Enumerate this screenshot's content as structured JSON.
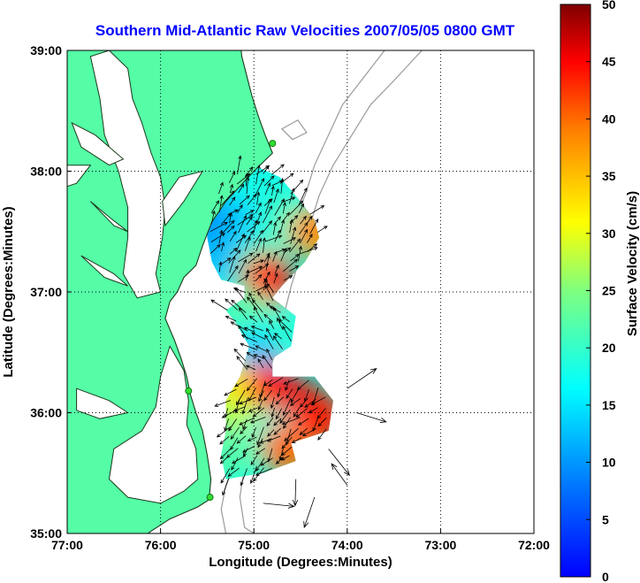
{
  "title": "Southern Mid-Atlantic Raw Velocities 2007/05/05 0800 GMT",
  "colors": {
    "land": "#55fda7",
    "coast": "#1a3a1a",
    "bathymetry": "#9a9a9a",
    "vector": "#000000",
    "station": "#33dd33",
    "title": "#0000ff"
  },
  "chart_data": {
    "type": "heatmap",
    "xlabel": "Longitude (Degrees:Minutes)",
    "ylabel": "Latitude (Degrees:Minutes)",
    "xlim": [
      -77,
      -72
    ],
    "ylim": [
      35,
      39
    ],
    "x_ticks": [
      {
        "value": -77,
        "label": "77:00"
      },
      {
        "value": -76,
        "label": "76:00"
      },
      {
        "value": -75,
        "label": "75:00"
      },
      {
        "value": -74,
        "label": "74:00"
      },
      {
        "value": -73,
        "label": "73:00"
      },
      {
        "value": -72,
        "label": "72:00"
      }
    ],
    "y_ticks": [
      {
        "value": 35,
        "label": "35:00"
      },
      {
        "value": 36,
        "label": "36:00"
      },
      {
        "value": 37,
        "label": "37:00"
      },
      {
        "value": 38,
        "label": "38:00"
      },
      {
        "value": 39,
        "label": "39:00"
      }
    ],
    "grid": true,
    "colorbar": {
      "label": "Surface Velocity (cm/s)",
      "min": 0,
      "max": 50,
      "ticks": [
        0,
        5,
        10,
        15,
        20,
        25,
        30,
        35,
        40,
        45,
        50
      ],
      "colormap": "jet",
      "placement": "right"
    },
    "stations": [
      {
        "lon": -74.8,
        "lat": 38.23
      },
      {
        "lon": -75.7,
        "lat": 36.18
      },
      {
        "lon": -75.47,
        "lat": 35.3
      }
    ],
    "speed_field": [
      {
        "lon": -75.45,
        "lat": 37.55,
        "value": 8
      },
      {
        "lon": -75.2,
        "lat": 37.55,
        "value": 11
      },
      {
        "lon": -74.95,
        "lat": 37.55,
        "value": 14
      },
      {
        "lon": -74.7,
        "lat": 37.6,
        "value": 20
      },
      {
        "lon": -74.35,
        "lat": 37.5,
        "value": 38
      },
      {
        "lon": -75.35,
        "lat": 37.3,
        "value": 12
      },
      {
        "lon": -74.95,
        "lat": 37.2,
        "value": 22
      },
      {
        "lon": -74.85,
        "lat": 37.1,
        "value": 44
      },
      {
        "lon": -75.1,
        "lat": 36.8,
        "value": 22
      },
      {
        "lon": -74.8,
        "lat": 36.65,
        "value": 20
      },
      {
        "lon": -75.0,
        "lat": 36.5,
        "value": 15
      },
      {
        "lon": -74.95,
        "lat": 36.35,
        "value": 11
      },
      {
        "lon": -75.2,
        "lat": 36.2,
        "value": 32
      },
      {
        "lon": -74.8,
        "lat": 36.2,
        "value": 45
      },
      {
        "lon": -74.5,
        "lat": 36.05,
        "value": 46
      },
      {
        "lon": -74.3,
        "lat": 35.95,
        "value": 44
      },
      {
        "lon": -75.15,
        "lat": 35.9,
        "value": 28
      },
      {
        "lon": -74.8,
        "lat": 35.8,
        "value": 18
      },
      {
        "lon": -75.25,
        "lat": 35.65,
        "value": 22
      },
      {
        "lon": -74.65,
        "lat": 35.7,
        "value": 40
      }
    ]
  }
}
